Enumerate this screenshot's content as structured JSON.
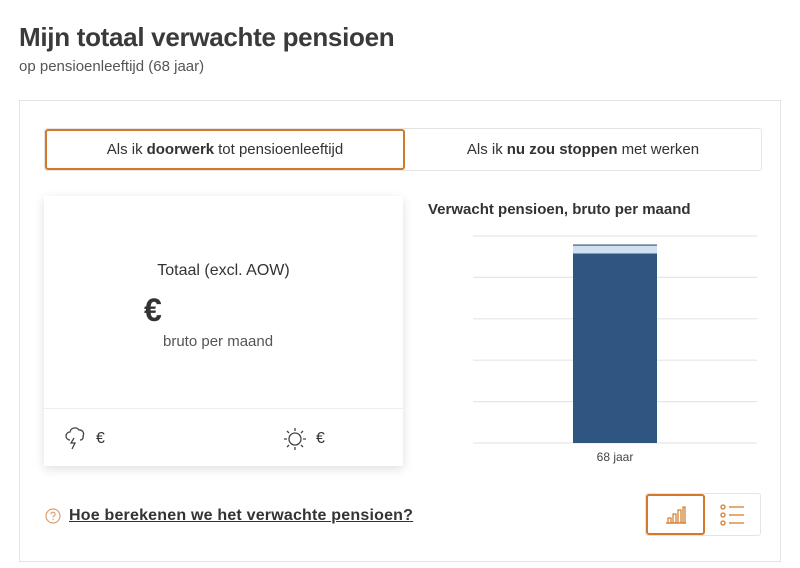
{
  "header": {
    "title": "Mijn totaal verwachte pensioen",
    "subtitle": "op pensioenleeftijd (68 jaar)"
  },
  "toggle": {
    "option1": {
      "prefix": "Als ik ",
      "bold": "doorwerk",
      "suffix": " tot pensioenleeftijd",
      "active": true
    },
    "option2": {
      "prefix": "Als ik ",
      "bold": "nu zou stoppen",
      "suffix": " met werken",
      "active": false
    }
  },
  "card": {
    "label": "Totaal (excl. AOW)",
    "currency": "€",
    "period": "bruto per maand",
    "pessimistic": {
      "icon": "storm-cloud-icon",
      "value": "€"
    },
    "optimistic": {
      "icon": "sun-icon",
      "value": "€"
    }
  },
  "chart_data": {
    "type": "bar",
    "stacked": true,
    "title": "Verwacht pensioen, bruto per maand",
    "categories": [
      "68 jaar"
    ],
    "series": [
      {
        "values": [
          4.58
        ],
        "color": "#2e5680"
      },
      {
        "values": [
          0.2
        ],
        "color": "#cfe0f1"
      }
    ],
    "ylim": [
      0,
      5
    ],
    "grid": true,
    "y_ticks_shown": false
  },
  "help": {
    "link": "Hoe berekenen we het verwachte pensioen?"
  },
  "views": {
    "chart_icon": "bar-chart-icon",
    "list_icon": "list-icon",
    "active": "chart"
  },
  "colors": {
    "accent": "#d27a2a",
    "bar": "#2e5680"
  }
}
